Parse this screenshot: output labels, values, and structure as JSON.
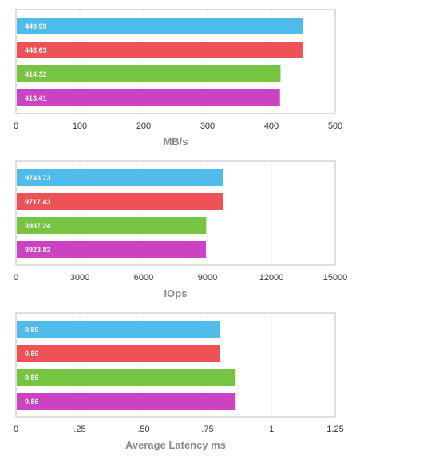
{
  "chart_data": [
    {
      "type": "bar",
      "orientation": "horizontal",
      "xlabel": "MB/s",
      "xlim": [
        0,
        500
      ],
      "ticks": [
        0,
        100,
        200,
        300,
        400,
        500
      ],
      "tick_labels": [
        "0",
        "100",
        "200",
        "300",
        "400",
        "500"
      ],
      "grid": true,
      "values": [
        449.99,
        448.63,
        414.32,
        413.41
      ],
      "labels": [
        "449.99",
        "448.63",
        "414.32",
        "413.41"
      ],
      "colors": [
        "#4fbbeb",
        "#ee5156",
        "#76c442",
        "#cb43c3"
      ]
    },
    {
      "type": "bar",
      "orientation": "horizontal",
      "xlabel": "IOps",
      "xlim": [
        0,
        15000
      ],
      "ticks": [
        0,
        3000,
        6000,
        9000,
        12000,
        15000
      ],
      "tick_labels": [
        "0",
        "3000",
        "6000",
        "9000",
        "12000",
        "15000"
      ],
      "grid": true,
      "values": [
        9743.73,
        9717.43,
        8937.24,
        8923.82
      ],
      "labels": [
        "9743.73",
        "9717.43",
        "8937.24",
        "8923.82"
      ],
      "colors": [
        "#4fbbeb",
        "#ee5156",
        "#76c442",
        "#cb43c3"
      ]
    },
    {
      "type": "bar",
      "orientation": "horizontal",
      "xlabel": "Average Latency ms",
      "xlim": [
        0,
        1.25
      ],
      "ticks": [
        0,
        0.25,
        0.5,
        0.75,
        1,
        1.25
      ],
      "tick_labels": [
        "0",
        ".25",
        ".50",
        ".75",
        "1",
        "1.25"
      ],
      "grid": true,
      "values": [
        0.8,
        0.8,
        0.86,
        0.86
      ],
      "labels": [
        "0.80",
        "0.80",
        "0.86",
        "0.86"
      ],
      "colors": [
        "#4fbbeb",
        "#ee5156",
        "#76c442",
        "#cb43c3"
      ]
    }
  ]
}
